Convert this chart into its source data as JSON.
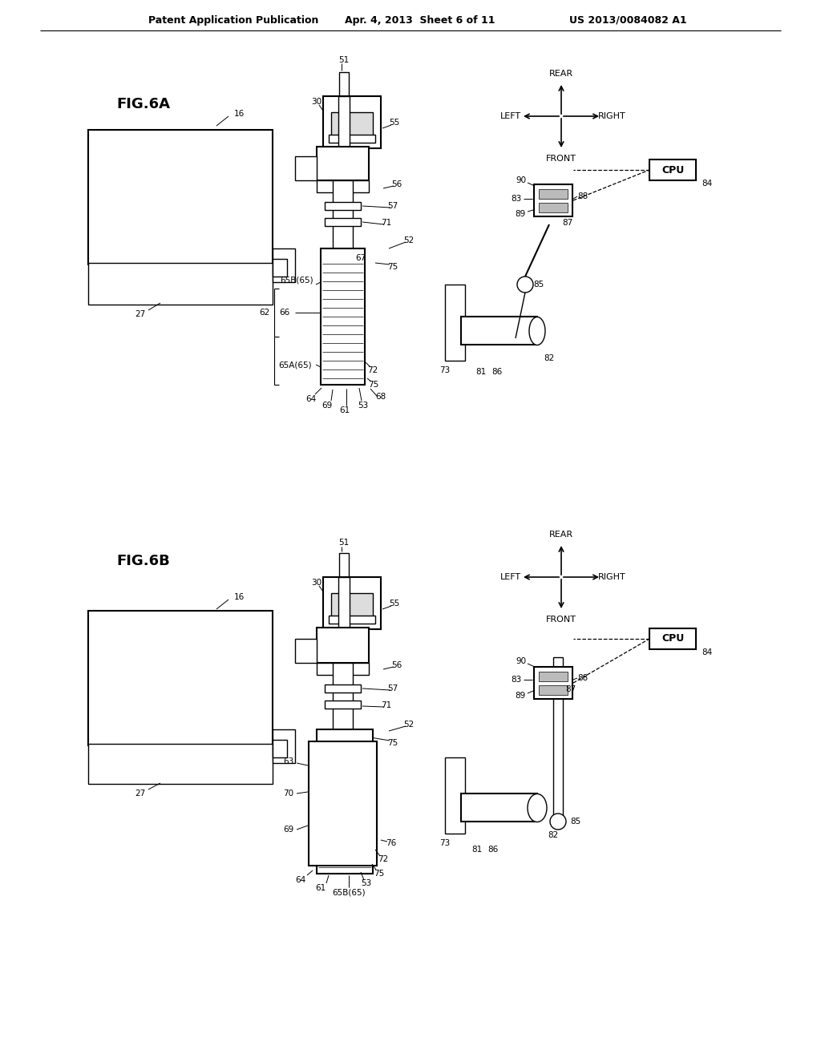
{
  "background_color": "#ffffff",
  "header_left": "Patent Application Publication",
  "header_center": "Apr. 4, 2013  Sheet 6 of 11",
  "header_right": "US 2013/0084082 A1",
  "fig6a_label": "FIG.6A",
  "fig6b_label": "FIG.6B"
}
